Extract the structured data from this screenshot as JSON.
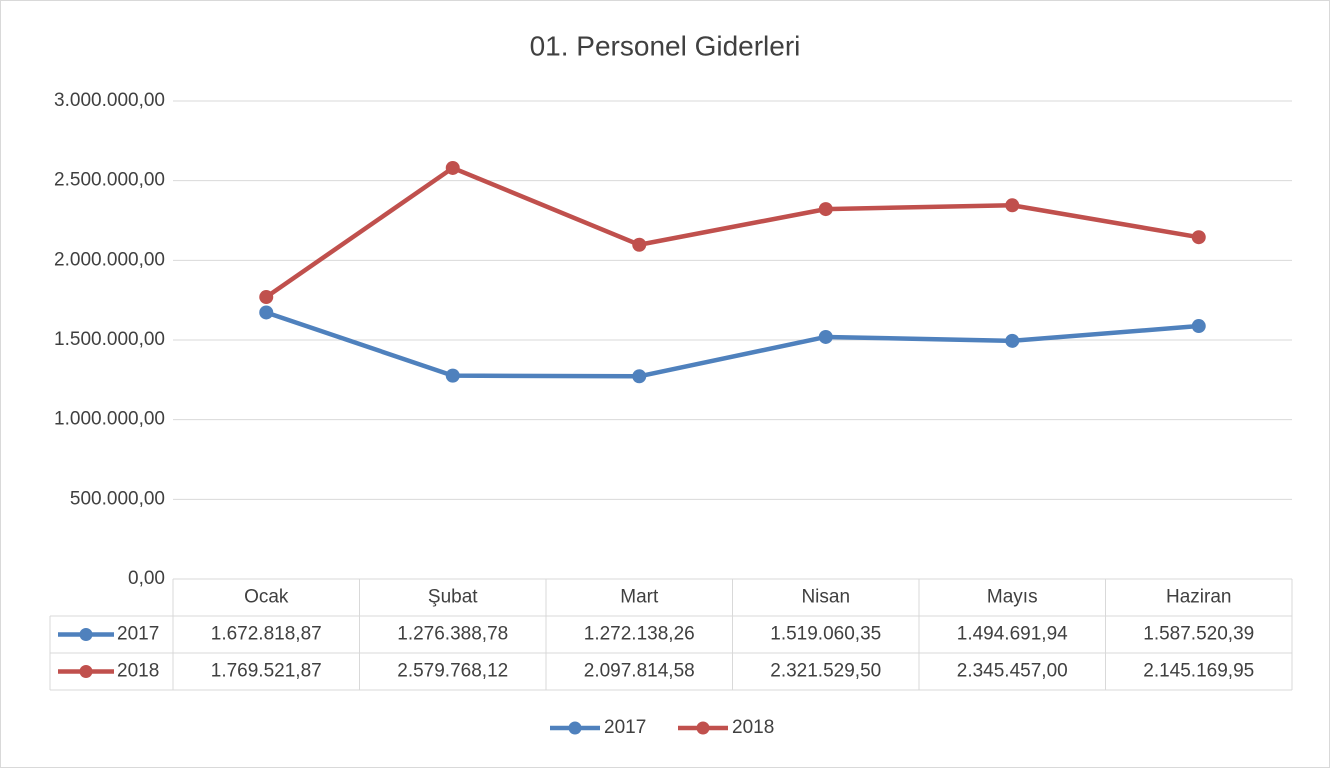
{
  "chart_data": {
    "type": "line",
    "title": "01. Personel Giderleri",
    "categories": [
      "Ocak",
      "Şubat",
      "Mart",
      "Nisan",
      "Mayıs",
      "Haziran"
    ],
    "series": [
      {
        "name": "2017",
        "color": "#4f81bd",
        "values": [
          1672818.87,
          1276388.78,
          1272138.26,
          1519060.35,
          1494691.94,
          1587520.39
        ],
        "value_labels": [
          "1.672.818,87",
          "1.276.388,78",
          "1.272.138,26",
          "1.519.060,35",
          "1.494.691,94",
          "1.587.520,39"
        ]
      },
      {
        "name": "2018",
        "color": "#c0504d",
        "values": [
          1769521.87,
          2579768.12,
          2097814.58,
          2321529.5,
          2345457.0,
          2145169.95
        ],
        "value_labels": [
          "1.769.521,87",
          "2.579.768,12",
          "2.097.814,58",
          "2.321.529,50",
          "2.345.457,00",
          "2.145.169,95"
        ]
      }
    ],
    "ylim": [
      0,
      3000000
    ],
    "yticks": [
      {
        "value": 0,
        "label": "0,00"
      },
      {
        "value": 500000,
        "label": "500.000,00"
      },
      {
        "value": 1000000,
        "label": "1.000.000,00"
      },
      {
        "value": 1500000,
        "label": "1.500.000,00"
      },
      {
        "value": 2000000,
        "label": "2.000.000,00"
      },
      {
        "value": 2500000,
        "label": "2.500.000,00"
      },
      {
        "value": 3000000,
        "label": "3.000.000,00"
      }
    ],
    "grid": true,
    "legend": "bottom",
    "data_table": true
  }
}
